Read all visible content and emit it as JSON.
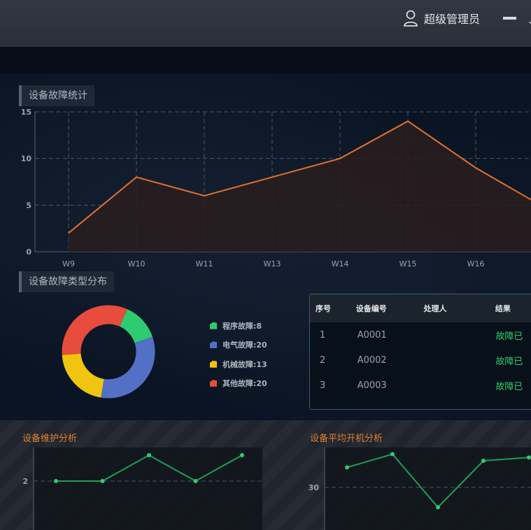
{
  "header": {
    "user_label": "超级管理员",
    "user_icon": "user-icon",
    "minimize_icon": "minimize-icon"
  },
  "panels": {
    "fault_stats_title": "设备故障统计",
    "fault_type_title": "设备故障类型分布",
    "maintenance_title": "设备维护分析",
    "uptime_title": "设备平均开机分析"
  },
  "chart_data": [
    {
      "type": "area",
      "title": "设备故障统计",
      "categories": [
        "W9",
        "W10",
        "W11",
        "W13",
        "W14",
        "W15",
        "W16",
        ""
      ],
      "series": [
        {
          "values": [
            2,
            8,
            6,
            8,
            10,
            14,
            9,
            4.8
          ]
        }
      ],
      "ylim": [
        0,
        15
      ],
      "yticks": [
        0,
        5,
        10,
        15
      ],
      "grid": true,
      "colors": {
        "line": "#e0712f",
        "fill": "#2a1d1e"
      }
    },
    {
      "type": "pie",
      "title": "设备故障类型分布",
      "donut": true,
      "labels": [
        "程序故障:8",
        "电气故障:20",
        "机械故障:13",
        "其他故障:20"
      ],
      "values": [
        8,
        20,
        13,
        20
      ],
      "colors": [
        "#2ecc71",
        "#5470c6",
        "#f1c40f",
        "#e74c3c"
      ],
      "legend": "right"
    },
    {
      "type": "line",
      "title": "设备维护分析",
      "series": [
        {
          "values": [
            2,
            2,
            3,
            2,
            3
          ]
        }
      ],
      "yticks": [
        2
      ],
      "colors": {
        "line": "#1f9d55"
      }
    },
    {
      "type": "line",
      "title": "设备平均开机分析",
      "series": [
        {
          "values": [
            33,
            35,
            27,
            34,
            34.5
          ]
        }
      ],
      "yticks": [
        30
      ],
      "colors": {
        "line": "#1f9d55"
      }
    }
  ],
  "table": {
    "headers": [
      "序号",
      "设备编号",
      "处理人",
      "结果"
    ],
    "rows": [
      {
        "idx": "1",
        "code": "A0001",
        "handler": "",
        "result": "故障已"
      },
      {
        "idx": "2",
        "code": "A0002",
        "handler": "",
        "result": "故障已"
      },
      {
        "idx": "3",
        "code": "A0003",
        "handler": "",
        "result": "故障已"
      }
    ]
  }
}
